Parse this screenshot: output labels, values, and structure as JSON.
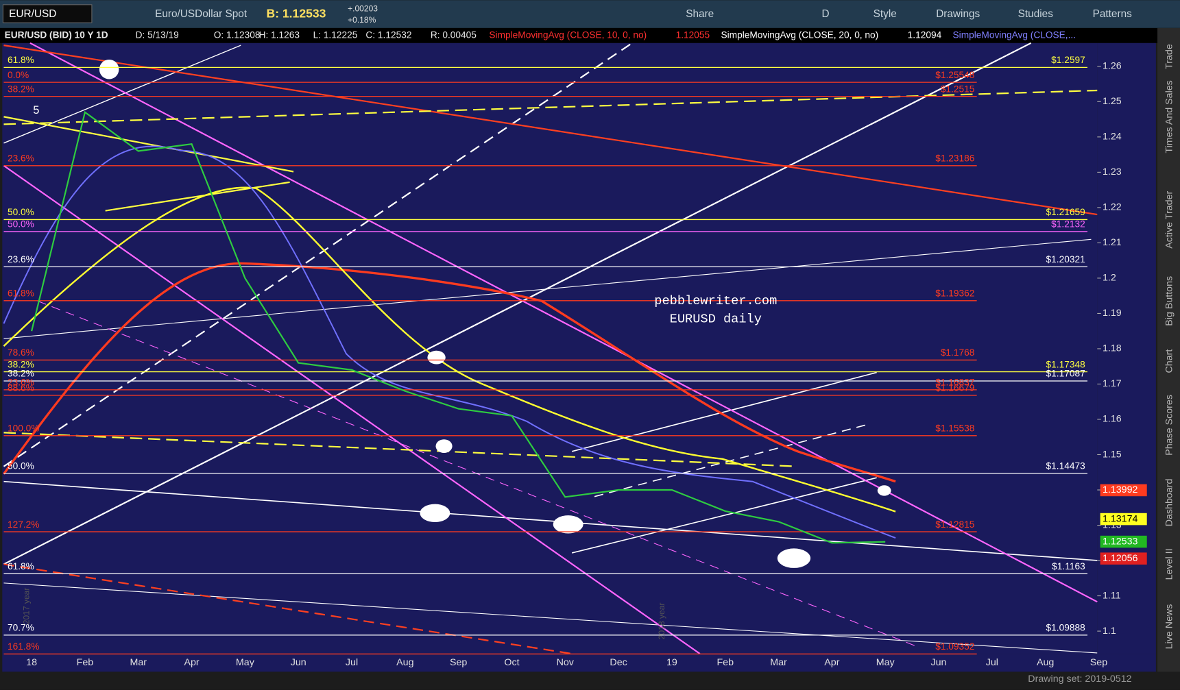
{
  "toolbar": {
    "symbol": "EUR/USD",
    "description": "Euro/USDollar Spot",
    "bid": "B: 1.12533",
    "change": "+.00203",
    "change_pct": "+0.18%",
    "buttons": [
      "Share",
      "D",
      "Style",
      "Drawings",
      "Studies",
      "Patterns"
    ]
  },
  "header": {
    "instrument": "EUR/USD (BID) 10 Y 1D",
    "fields": [
      "D: 5/13/19",
      "O: 1.12308",
      "H: 1.1263",
      "L: 1.12225",
      "C: 1.12532",
      "R: 0.00405"
    ],
    "studies": [
      {
        "text": "SimpleMovingAvg (CLOSE, 10, 0, no)",
        "value": "1.12055",
        "color": "#ff3030"
      },
      {
        "text": "SimpleMovingAvg (CLOSE, 20, 0, no)",
        "value": "1.12094",
        "color": "#ffffff"
      },
      {
        "text": "SimpleMovingAvg (CLOSE,...",
        "color": "#8080ff"
      }
    ]
  },
  "side_tabs": [
    "Trade",
    "Times And Sales",
    "Active Trader",
    "Big Buttons",
    "Chart",
    "Phase Scores",
    "Dashboard",
    "Level II",
    "Live News"
  ],
  "footer": {
    "drawing_set": "Drawing set: 2019-0512"
  },
  "chart": {
    "type": "line",
    "categories": [
      "18",
      "Feb",
      "Mar",
      "Apr",
      "May",
      "Jun",
      "Jul",
      "Aug",
      "Sep",
      "Oct",
      "Nov",
      "Dec",
      "19",
      "Feb",
      "Mar",
      "Apr",
      "May",
      "Jun",
      "Jul",
      "Aug",
      "Sep"
    ],
    "values": [
      1.185,
      1.247,
      1.236,
      1.238,
      1.2,
      1.176,
      1.174,
      1.168,
      1.163,
      1.161,
      1.138,
      1.14,
      1.14,
      1.134,
      1.131,
      1.125,
      1.1253,
      null,
      null,
      null,
      null
    ],
    "color": "#2ecc40",
    "ylim": [
      1.0936,
      1.2666
    ],
    "yticks": [
      1.1,
      1.11,
      1.12,
      1.13,
      1.14,
      1.15,
      1.16,
      1.17,
      1.18,
      1.19,
      1.2,
      1.21,
      1.22,
      1.23,
      1.24,
      1.25,
      1.26
    ],
    "annotations": [
      "pebblewriter.com",
      "EURUSD daily"
    ],
    "wave_label": "5",
    "year_labels": [
      "2017 year",
      "2018 year"
    ],
    "levels": [
      {
        "pct": "61.8%",
        "price": "$1.2597",
        "value": 1.2597,
        "color": "#ffff40"
      },
      {
        "pct": "0.0%",
        "price": "$1.25548",
        "value": 1.25548,
        "color": "#ff3b1f"
      },
      {
        "pct": "38.2%",
        "price": "$1.2515",
        "value": 1.2515,
        "color": "#ff3b1f"
      },
      {
        "pct": "23.6%",
        "price": "$1.23186",
        "value": 1.23186,
        "color": "#ff3b1f"
      },
      {
        "pct": "50.0%",
        "price": "$1.21659",
        "value": 1.21659,
        "color": "#ffff40"
      },
      {
        "pct": "50.0%",
        "price": "$1.2132",
        "value": 1.2132,
        "color": "#ff66ff"
      },
      {
        "pct": "23.6%",
        "price": "$1.20321",
        "value": 1.20321,
        "color": "#ffffff"
      },
      {
        "pct": "61.8%",
        "price": "$1.19362",
        "value": 1.19362,
        "color": "#ff3b1f"
      },
      {
        "pct": "78.6%",
        "price": "$1.1768",
        "value": 1.1768,
        "color": "#ff3b1f"
      },
      {
        "pct": "38.2%",
        "price": "$1.17348",
        "value": 1.17348,
        "color": "#ffff40"
      },
      {
        "pct": "38.2%",
        "price": "$1.17087",
        "value": 1.17087,
        "color": "#ffffff"
      },
      {
        "pct": "23.6%",
        "price": "$1.16837",
        "value": 1.16837,
        "color": "#ff3b1f"
      },
      {
        "pct": "88.6%",
        "price": "$1.16679",
        "value": 1.16679,
        "color": "#ff3b1f"
      },
      {
        "pct": "100.0%",
        "price": "$1.15538",
        "value": 1.15538,
        "color": "#ff3b1f"
      },
      {
        "pct": "50.0%",
        "price": "$1.14473",
        "value": 1.14473,
        "color": "#ffffff"
      },
      {
        "pct": "127.2%",
        "price": "$1.12815",
        "value": 1.12815,
        "color": "#ff3b1f"
      },
      {
        "pct": "61.8%",
        "price": "$1.1163",
        "value": 1.1163,
        "color": "#ffffff"
      },
      {
        "pct": "70.7%",
        "price": "$1.09888",
        "value": 1.09888,
        "color": "#ffffff"
      },
      {
        "pct": "161.8%",
        "price": "$1.09352",
        "value": 1.09352,
        "color": "#ff3b1f"
      }
    ],
    "price_tags": [
      {
        "value": 1.13992,
        "color": "#ff3b1f"
      },
      {
        "value": 1.13174,
        "color": "#ffff20"
      },
      {
        "value": 1.12533,
        "color": "#22b822"
      },
      {
        "value": 1.12056,
        "color": "#e02020"
      }
    ]
  }
}
